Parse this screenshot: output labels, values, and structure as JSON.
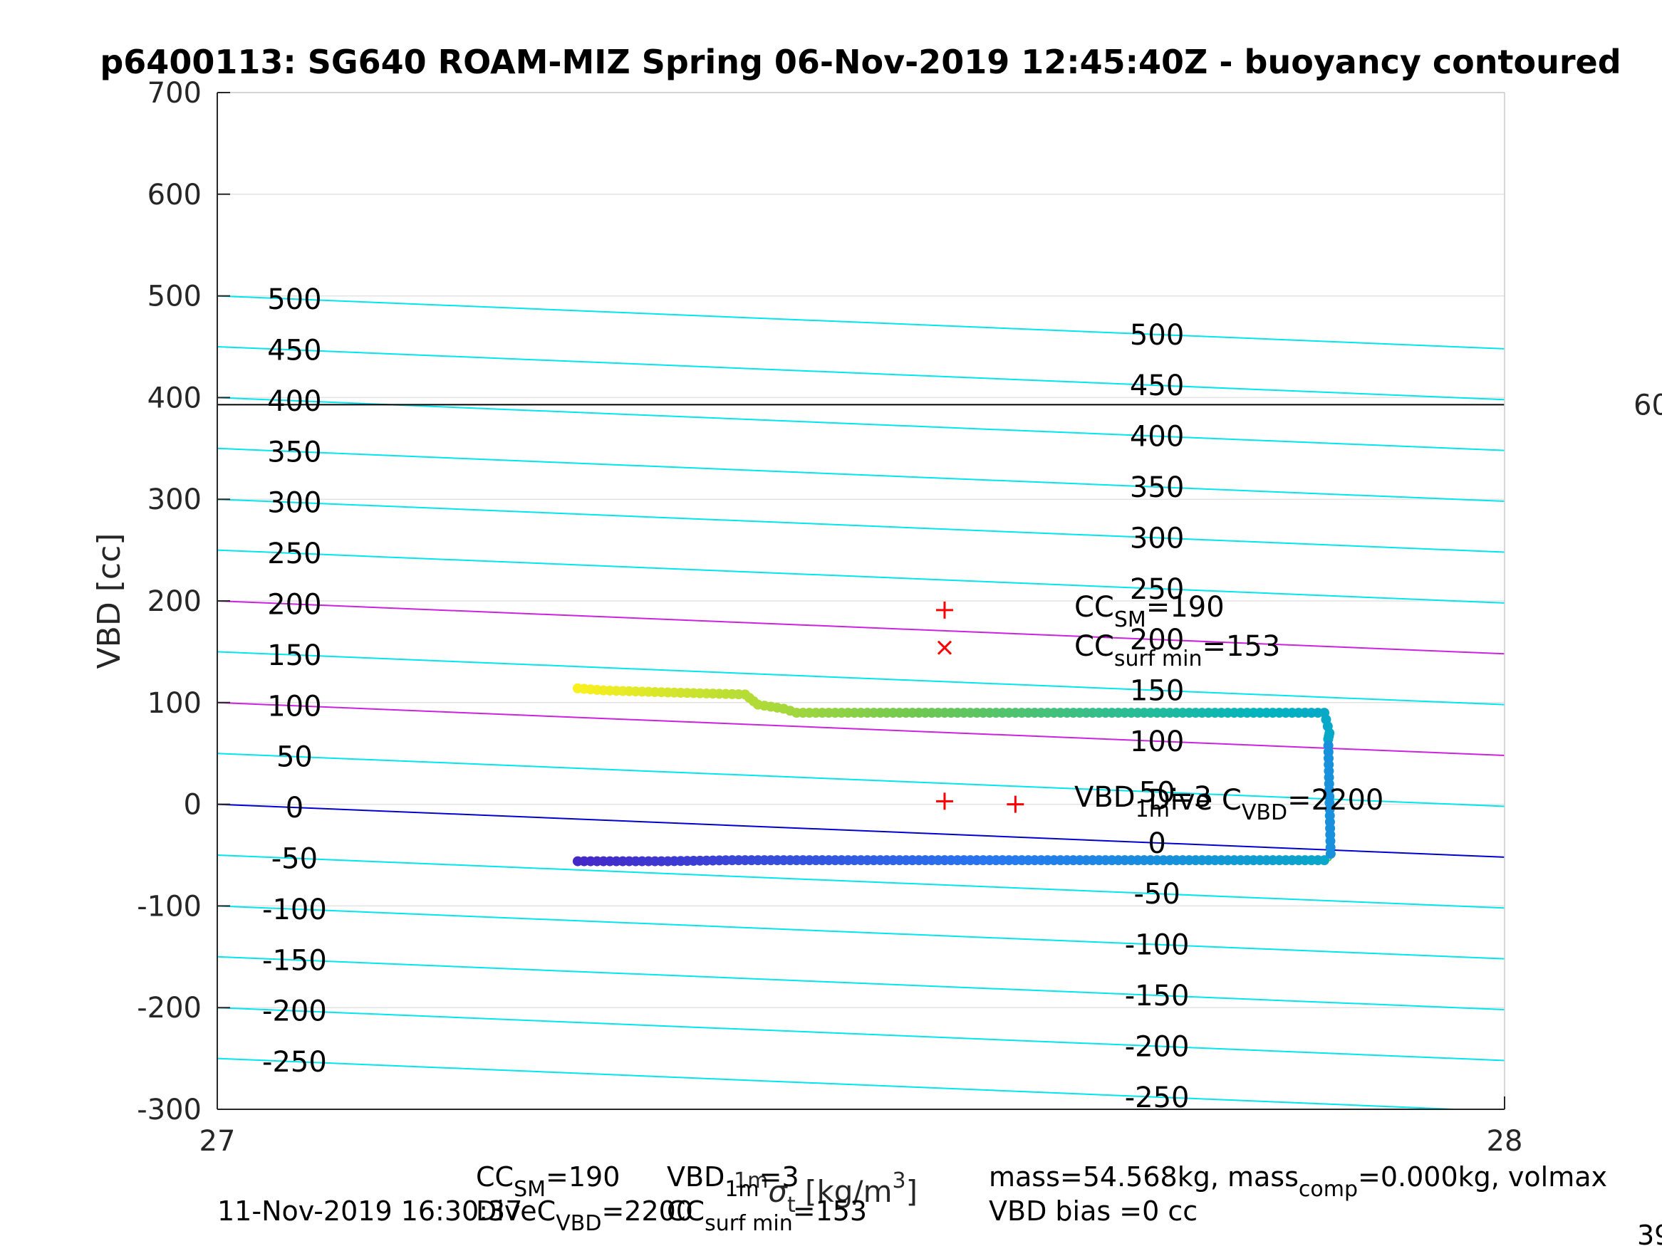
{
  "chart_data": {
    "type": "scatter",
    "title": "p6400113: SG640 ROAM-MIZ Spring 06-Nov-2019 12:45:40Z - buoyancy contoured",
    "ylabel": "VBD [cc]",
    "xlabel": {
      "prefix": "",
      "sigma_sup": "1m",
      "sigma": "σ",
      "sigma_sub": "t",
      "unit": " [kg/m",
      "unit_sup": "3",
      "unit_end": "]"
    },
    "xlim": [
      27,
      28
    ],
    "ylim": [
      -300,
      700
    ],
    "xticks": [
      "27",
      "28"
    ],
    "yticks": [
      "-300",
      "-200",
      "-100",
      "0",
      "100",
      "200",
      "300",
      "400",
      "500",
      "600",
      "700"
    ],
    "grid": true,
    "contours": {
      "levels": [
        -250,
        -200,
        -150,
        -100,
        -50,
        0,
        50,
        100,
        150,
        200,
        250,
        300,
        350,
        400,
        450,
        500
      ],
      "slope_per_sigma": -52,
      "color_default": "#00e5ee",
      "color_zero": "#0000cc",
      "color_highlight": "#cc22dd",
      "highlight_levels": [
        100,
        200
      ],
      "left_labels": [
        "500",
        "450",
        "400",
        "350",
        "300",
        "250",
        "200",
        "150",
        "100",
        "50",
        "0",
        "-50",
        "-100",
        "-150",
        "-200",
        "-250"
      ],
      "right_labels": [
        "500",
        "450",
        "400",
        "350",
        "300",
        "250",
        "200",
        "150",
        "100",
        "50",
        "0",
        "-50",
        "-100",
        "-150",
        "-200",
        "-250"
      ]
    },
    "reference_line": {
      "y": 393,
      "color": "#000000",
      "right_label": "60"
    },
    "series": [
      {
        "segments": [
          {
            "x": [
              27.28,
              27.3,
              27.35,
              27.41,
              27.42,
              27.44,
              27.45,
              27.5,
              27.6,
              27.7,
              27.8,
              27.86,
              27.864,
              27.863,
              27.865
            ],
            "y": [
              114,
              112,
              110,
              108,
              98,
              94,
              90,
              90,
              90,
              90,
              90,
              90,
              70,
              64,
              -55
            ]
          },
          {
            "x": [
              27.28,
              27.35,
              27.4,
              27.5,
              27.6,
              27.7,
              27.8,
              27.865
            ],
            "y": [
              -56,
              -56,
              -55,
              -55,
              -55,
              -55,
              -55,
              -55
            ]
          }
        ],
        "line_color": "#33dd33"
      }
    ],
    "markers": [
      {
        "x": 27.565,
        "y": 191,
        "symbol": "+",
        "color": "#ff0000"
      },
      {
        "x": 27.565,
        "y": 154,
        "symbol": "x",
        "color": "#ff0000"
      },
      {
        "x": 27.565,
        "y": 3,
        "symbol": "+",
        "color": "#ff0000"
      },
      {
        "x": 27.62,
        "y": 0,
        "symbol": "+",
        "color": "#ff0000"
      }
    ],
    "annotations": {
      "cc_sm": {
        "main": "CC",
        "sub": "SM",
        "rest": "=190"
      },
      "cc_surf": {
        "main": "CC",
        "sub": "surf min",
        "rest": "=153"
      },
      "vbd_dive": {
        "main": "VBD",
        "sub": "1m",
        "rest": "=3"
      },
      "dive_c": {
        "main": "Dive C",
        "sub": "VBD",
        "rest": "=2200"
      }
    },
    "footer": {
      "timestamp": "11-Nov-2019 16:30:37",
      "line1": {
        "cc_sm": {
          "main": "CC",
          "sub": "SM",
          "rest": "=190"
        },
        "vbd": {
          "main": "VBD",
          "sub": "1m",
          "rest": "=3"
        },
        "mass": "mass=54.568kg, mass",
        "mass_sub": "comp",
        "mass_rest": "=0.000kg, volmax"
      },
      "line2": {
        "dive_c": {
          "main": "DiveC",
          "sub": "VBD",
          "rest": "=2200"
        },
        "cc_surf": {
          "main": "CC",
          "sub": "surf min",
          "rest": "=153"
        },
        "bias": "VBD bias =0 cc"
      },
      "corner": "39"
    }
  }
}
